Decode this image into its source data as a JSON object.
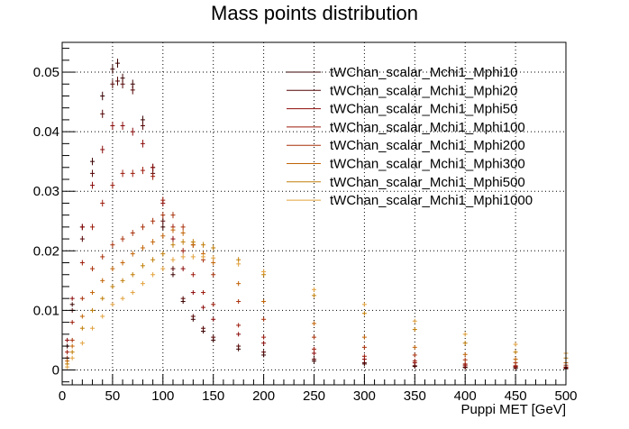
{
  "chart_data": {
    "type": "scatter",
    "title": "Mass points distribution",
    "xlabel": "Puppi MET [GeV]",
    "ylabel": "",
    "xlim": [
      0,
      500
    ],
    "ylim": [
      -0.0025,
      0.055
    ],
    "grid": true,
    "legend_position": "top-right",
    "x_ticks": [
      0,
      50,
      100,
      150,
      200,
      250,
      300,
      350,
      400,
      450,
      500
    ],
    "y_ticks": [
      0,
      0.01,
      0.02,
      0.03,
      0.04,
      0.05
    ],
    "x_tick_labels": [
      "0",
      "50",
      "100",
      "150",
      "200",
      "250",
      "300",
      "350",
      "400",
      "450",
      "500"
    ],
    "y_tick_labels": [
      "0",
      "0.01",
      "0.02",
      "0.03",
      "0.04",
      "0.05"
    ],
    "series": [
      {
        "name": "tWChan_scalar_Mchi1_Mphi10",
        "color": "#3a0000",
        "x": [
          5,
          10,
          20,
          30,
          40,
          50,
          55,
          60,
          70,
          80,
          90,
          100,
          110,
          120,
          130,
          140,
          150,
          175,
          200,
          250,
          300,
          350,
          400,
          450,
          500
        ],
        "y": [
          0.004,
          0.011,
          0.024,
          0.035,
          0.046,
          0.0505,
          0.0515,
          0.049,
          0.048,
          0.042,
          0.034,
          0.024,
          0.016,
          0.0115,
          0.0085,
          0.0065,
          0.005,
          0.0035,
          0.0025,
          0.0015,
          0.001,
          0.0006,
          0.0004,
          0.0003,
          0.0002
        ]
      },
      {
        "name": "tWChan_scalar_Mchi1_Mphi20",
        "color": "#550505",
        "x": [
          5,
          10,
          20,
          30,
          40,
          50,
          55,
          60,
          70,
          80,
          90,
          100,
          110,
          120,
          130,
          140,
          150,
          175,
          200,
          250,
          300,
          350,
          400,
          450,
          500
        ],
        "y": [
          0.004,
          0.01,
          0.022,
          0.033,
          0.043,
          0.048,
          0.0485,
          0.048,
          0.047,
          0.041,
          0.033,
          0.025,
          0.017,
          0.012,
          0.009,
          0.007,
          0.0055,
          0.004,
          0.003,
          0.0018,
          0.0012,
          0.0007,
          0.0005,
          0.0004,
          0.0003
        ]
      },
      {
        "name": "tWChan_scalar_Mchi1_Mphi50",
        "color": "#8b0a0a",
        "x": [
          5,
          10,
          20,
          30,
          40,
          50,
          60,
          70,
          80,
          90,
          100,
          110,
          120,
          130,
          140,
          150,
          175,
          200,
          250,
          300,
          350,
          400,
          450,
          500
        ],
        "y": [
          0.005,
          0.012,
          0.024,
          0.031,
          0.037,
          0.041,
          0.041,
          0.04,
          0.038,
          0.034,
          0.028,
          0.022,
          0.017,
          0.013,
          0.0105,
          0.0085,
          0.006,
          0.0045,
          0.0028,
          0.0018,
          0.0012,
          0.0008,
          0.0006,
          0.0004
        ]
      },
      {
        "name": "tWChan_scalar_Mchi1_Mphi100",
        "color": "#9c1a0a",
        "x": [
          5,
          10,
          20,
          30,
          40,
          50,
          60,
          70,
          80,
          90,
          100,
          110,
          120,
          130,
          140,
          150,
          175,
          200,
          250,
          300,
          350,
          400,
          450,
          500
        ],
        "y": [
          0.003,
          0.008,
          0.018,
          0.024,
          0.028,
          0.031,
          0.033,
          0.033,
          0.0335,
          0.0325,
          0.0285,
          0.024,
          0.02,
          0.016,
          0.013,
          0.011,
          0.0075,
          0.0055,
          0.0035,
          0.0023,
          0.0015,
          0.001,
          0.0007,
          0.0005
        ]
      },
      {
        "name": "tWChan_scalar_Mchi1_Mphi200",
        "color": "#a8300a",
        "x": [
          5,
          10,
          20,
          30,
          40,
          50,
          60,
          70,
          80,
          90,
          100,
          110,
          120,
          130,
          140,
          150,
          175,
          200,
          250,
          300,
          350,
          400,
          450,
          500
        ],
        "y": [
          0.002,
          0.005,
          0.012,
          0.017,
          0.019,
          0.021,
          0.022,
          0.023,
          0.024,
          0.025,
          0.026,
          0.026,
          0.024,
          0.021,
          0.0185,
          0.016,
          0.0115,
          0.0085,
          0.0055,
          0.0038,
          0.0025,
          0.0017,
          0.0012,
          0.0008
        ]
      },
      {
        "name": "tWChan_scalar_Mchi1_Mphi300",
        "color": "#c26306",
        "x": [
          5,
          10,
          20,
          30,
          40,
          50,
          60,
          70,
          80,
          90,
          100,
          110,
          120,
          130,
          140,
          150,
          175,
          200,
          250,
          300,
          350,
          400,
          450,
          500
        ],
        "y": [
          0.0015,
          0.004,
          0.009,
          0.013,
          0.015,
          0.017,
          0.018,
          0.0195,
          0.0205,
          0.0215,
          0.0225,
          0.0235,
          0.023,
          0.021,
          0.0195,
          0.018,
          0.0145,
          0.0115,
          0.0078,
          0.0055,
          0.0038,
          0.0026,
          0.0018,
          0.0012
        ]
      },
      {
        "name": "tWChan_scalar_Mchi1_Mphi500",
        "color": "#c07e08",
        "x": [
          5,
          10,
          20,
          30,
          40,
          50,
          60,
          70,
          80,
          90,
          100,
          110,
          120,
          130,
          140,
          150,
          175,
          200,
          250,
          300,
          350,
          400,
          450,
          500
        ],
        "y": [
          0.001,
          0.003,
          0.007,
          0.01,
          0.012,
          0.014,
          0.015,
          0.016,
          0.0175,
          0.0185,
          0.0195,
          0.021,
          0.0215,
          0.0215,
          0.021,
          0.0205,
          0.0185,
          0.016,
          0.0125,
          0.0095,
          0.0068,
          0.0045,
          0.003,
          0.002
        ]
      },
      {
        "name": "tWChan_scalar_Mchi1_Mphi1000",
        "color": "#e2a13c",
        "x": [
          5,
          10,
          20,
          30,
          40,
          50,
          60,
          70,
          80,
          90,
          100,
          110,
          120,
          130,
          140,
          150,
          175,
          200,
          250,
          300,
          350,
          400,
          450,
          500
        ],
        "y": [
          0.0005,
          0.002,
          0.0045,
          0.007,
          0.009,
          0.011,
          0.012,
          0.013,
          0.0145,
          0.016,
          0.017,
          0.0185,
          0.019,
          0.019,
          0.019,
          0.0188,
          0.0178,
          0.0165,
          0.0135,
          0.011,
          0.0082,
          0.006,
          0.0043,
          0.0028
        ]
      }
    ]
  }
}
